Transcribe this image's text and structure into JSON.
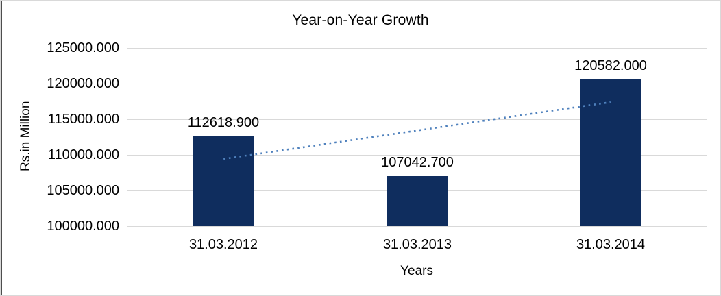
{
  "chart": {
    "title": "Year-on-Year Growth",
    "y_axis_title": "Rs.in Million",
    "x_axis_title": "Years"
  },
  "chart_data": {
    "type": "bar",
    "title": "Year-on-Year Growth",
    "xlabel": "Years",
    "ylabel": "Rs.in Million",
    "categories": [
      "31.03.2012",
      "31.03.2013",
      "31.03.2014"
    ],
    "values": [
      112618.9,
      107042.7,
      120582.0
    ],
    "value_labels": [
      "112618.900",
      "107042.700",
      "120582.000"
    ],
    "ylim": [
      100000,
      125000
    ],
    "yticks": [
      125000,
      120000,
      115000,
      110000,
      105000,
      100000
    ],
    "ytick_labels": [
      "125000.000",
      "120000.000",
      "115000.000",
      "110000.000",
      "105000.000",
      "100000.000"
    ],
    "grid": true,
    "legend": false,
    "trendline": {
      "type": "linear",
      "style": "dotted"
    },
    "colors": {
      "bar": "#0f2d5e",
      "trend": "#4f81bd",
      "gridline": "#d9d9d9",
      "text": "#000000",
      "frame_border": "#d9d9d9",
      "left_edge": "#4d4d4d"
    }
  }
}
